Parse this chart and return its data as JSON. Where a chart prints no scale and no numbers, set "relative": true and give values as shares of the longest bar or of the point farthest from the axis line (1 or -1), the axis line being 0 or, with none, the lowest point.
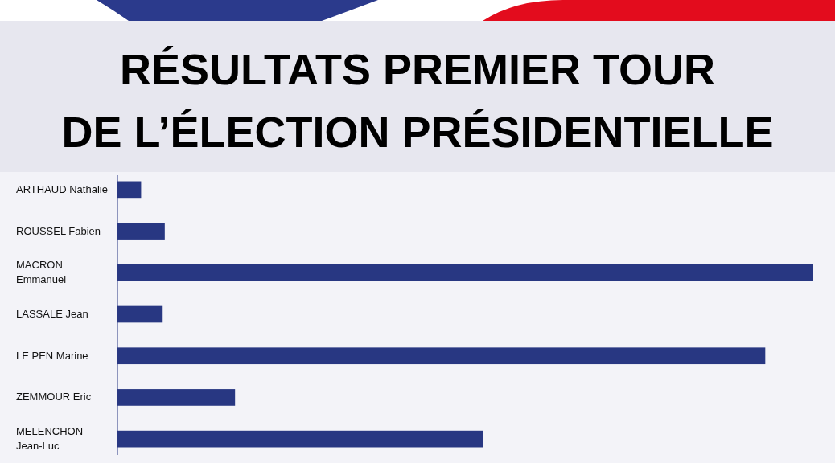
{
  "chart_data": {
    "type": "bar",
    "orientation": "horizontal",
    "relative": true,
    "title": "RÉSULTATS PREMIER TOUR\nDE L’ÉLECTION PRÉSIDENTIELLE",
    "categories": [
      "ARTHAUD Nathalie",
      "ROUSSEL Fabien",
      "MACRON\nEmmanuel",
      "LASSALE Jean",
      "LE PEN Marine",
      "ZEMMOUR Eric",
      "MELENCHON\nJean-Luc"
    ],
    "values": [
      0.034,
      0.068,
      1,
      0.065,
      0.931,
      0.169,
      0.525
    ],
    "color": "#283782"
  }
}
